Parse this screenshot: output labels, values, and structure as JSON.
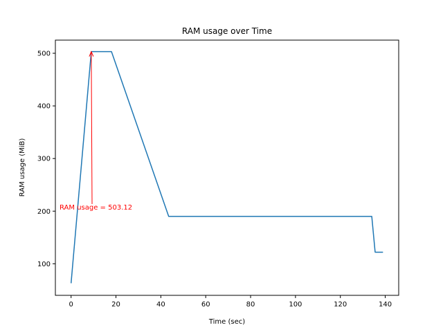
{
  "chart_data": {
    "type": "line",
    "title": "RAM usage over Time",
    "xlabel": "Time (sec)",
    "ylabel": "RAM usage (MiB)",
    "xlim": [
      -7,
      146
    ],
    "ylim": [
      40,
      525
    ],
    "xticks": [
      0,
      20,
      40,
      60,
      80,
      100,
      120,
      140
    ],
    "yticks": [
      100,
      200,
      300,
      400,
      500
    ],
    "grid": false,
    "colors": {
      "line": "#1f77b4",
      "annotation": "#ff0000"
    },
    "series": [
      {
        "x": [
          0,
          9,
          18,
          43.5,
          134,
          135.5,
          139
        ],
        "y": [
          63,
          503.12,
          503.12,
          190,
          190,
          122,
          122
        ]
      }
    ],
    "annotations": [
      {
        "text": "RAM usage = 503.12",
        "point": [
          9,
          503.12
        ],
        "text_anchor": [
          -7,
          203
        ]
      }
    ]
  }
}
